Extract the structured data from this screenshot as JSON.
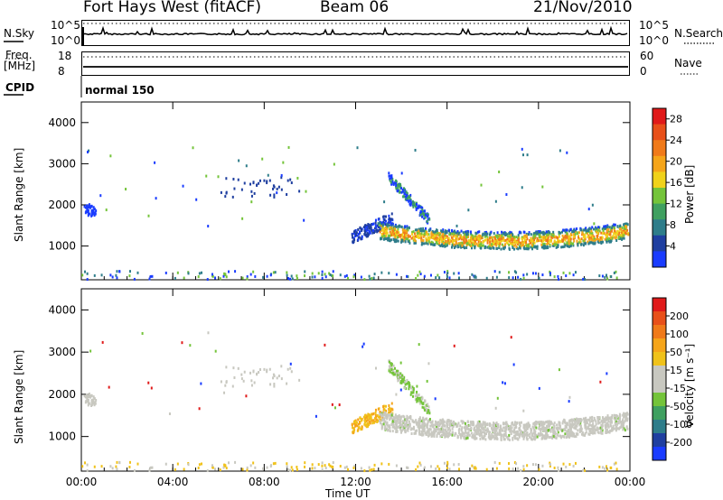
{
  "header": {
    "station": "Fort Hays West (fitACF)",
    "beam": "Beam 06",
    "date": "21/Nov/2010"
  },
  "top_panels": {
    "nsky_label": "N.Sky",
    "nsky_ticks": [
      "10^5",
      "10^0"
    ],
    "nsearch_label": "N.Search",
    "nsearch_ticks": [
      "10^5",
      "10^0"
    ],
    "freq_label": "Freq.",
    "freq_unit": "[MHz]",
    "freq_ticks": [
      "18",
      "8"
    ],
    "nave_label": "Nave",
    "nave_ticks": [
      "60",
      "0"
    ],
    "cpid_label": "CPID",
    "cpid_value": "normal 150"
  },
  "chart_data": [
    {
      "type": "heatmap",
      "name": "power",
      "ylabel": "Slant Range [km]",
      "xlabel": "Time UT",
      "x_ticks": [
        "00:00",
        "04:00",
        "08:00",
        "12:00",
        "16:00",
        "20:00",
        "00:00"
      ],
      "xlim_hours": [
        0,
        24
      ],
      "y_ticks": [
        1000,
        2000,
        3000,
        4000
      ],
      "ylim": [
        180,
        4500
      ],
      "colorbar_label": "Power [dB]",
      "colorbar_ticks": [
        "4",
        "8",
        "12",
        "16",
        "20",
        "24",
        "28"
      ],
      "colorbar_colors": [
        "#1a3cff",
        "#1f3fa0",
        "#2e7d8a",
        "#3fa060",
        "#74c43a",
        "#f0d21a",
        "#f5a51a",
        "#f07a1a",
        "#e8501a",
        "#e01a1a"
      ]
    },
    {
      "type": "heatmap",
      "name": "velocity",
      "ylabel": "Slant Range [km]",
      "xlabel": "Time UT",
      "x_ticks": [
        "00:00",
        "04:00",
        "08:00",
        "12:00",
        "16:00",
        "20:00",
        "00:00"
      ],
      "xlim_hours": [
        0,
        24
      ],
      "y_ticks": [
        1000,
        2000,
        3000,
        4000
      ],
      "ylim": [
        180,
        4500
      ],
      "colorbar_label": "Velocity [m s⁻¹]",
      "colorbar_ticks": [
        "200",
        "100",
        "50",
        "15",
        "-15",
        "-50",
        "-100",
        "-200"
      ],
      "colorbar_colors": [
        "#1a3cff",
        "#1f3fa0",
        "#2e7d8a",
        "#3fa060",
        "#74c43a",
        "#c8c8c0",
        "#c8c8c0",
        "#f0c21a",
        "#f5a51a",
        "#f07a1a",
        "#e8501a",
        "#e01a1a"
      ]
    }
  ]
}
